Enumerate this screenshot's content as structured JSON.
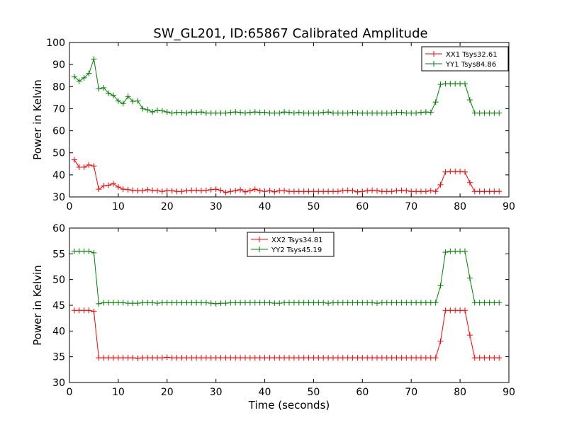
{
  "colors": {
    "xx": "#ff0000",
    "yy": "#008000",
    "axis": "#000000",
    "background": "#ffffff"
  },
  "figure": {
    "title": "SW_GL201, ID:65867 Calibrated Amplitude"
  },
  "chart_data": [
    {
      "type": "line",
      "title": "SW_GL201, ID:65867 Calibrated Amplitude",
      "xlabel": "",
      "ylabel": "Power in Kelvin",
      "xlim": [
        0,
        90
      ],
      "ylim": [
        30,
        100
      ],
      "xticks": [
        0,
        10,
        20,
        30,
        40,
        50,
        60,
        70,
        80,
        90
      ],
      "yticks": [
        30,
        40,
        50,
        60,
        70,
        80,
        90,
        100
      ],
      "grid": false,
      "legend_position": "top-right",
      "marker": "plus",
      "x": [
        1,
        2,
        3,
        4,
        5,
        6,
        7,
        8,
        9,
        10,
        11,
        12,
        13,
        14,
        15,
        16,
        17,
        18,
        19,
        20,
        21,
        22,
        23,
        24,
        25,
        26,
        27,
        28,
        29,
        30,
        31,
        32,
        33,
        34,
        35,
        36,
        37,
        38,
        39,
        40,
        41,
        42,
        43,
        44,
        45,
        46,
        47,
        48,
        49,
        50,
        51,
        52,
        53,
        54,
        55,
        56,
        57,
        58,
        59,
        60,
        61,
        62,
        63,
        64,
        65,
        66,
        67,
        68,
        69,
        70,
        71,
        72,
        73,
        74,
        75,
        76,
        77,
        78,
        79,
        80,
        81,
        82,
        83,
        84,
        85,
        86,
        87,
        88
      ],
      "series": [
        {
          "name": "XX1 Tsys32.61",
          "color": "#ff0000",
          "values": [
            46.8,
            43.5,
            43.5,
            44.5,
            44.0,
            33.5,
            35.0,
            35.3,
            36.0,
            34.5,
            33.5,
            33.3,
            33.0,
            32.8,
            32.8,
            33.3,
            33.0,
            32.8,
            32.5,
            32.8,
            32.8,
            32.5,
            32.5,
            32.8,
            33.0,
            33.0,
            32.8,
            33.0,
            33.3,
            33.5,
            33.0,
            32.0,
            32.5,
            32.8,
            33.3,
            32.3,
            32.8,
            33.5,
            32.8,
            32.5,
            32.8,
            32.3,
            32.8,
            32.8,
            32.5,
            32.5,
            32.5,
            32.5,
            32.5,
            32.5,
            32.5,
            32.5,
            32.5,
            32.5,
            32.5,
            32.8,
            33.0,
            32.8,
            32.3,
            32.5,
            32.8,
            33.0,
            32.8,
            32.5,
            32.5,
            32.5,
            32.8,
            33.0,
            32.8,
            32.5,
            32.5,
            32.5,
            32.5,
            32.8,
            32.5,
            35.5,
            41.3,
            41.5,
            41.5,
            41.5,
            41.3,
            36.5,
            32.5,
            32.5,
            32.5,
            32.5,
            32.5,
            32.5
          ]
        },
        {
          "name": "YY1 Tsys84.86",
          "color": "#008000",
          "values": [
            84.5,
            82.5,
            84.0,
            86.0,
            92.5,
            79.0,
            79.5,
            77.0,
            76.0,
            73.5,
            72.3,
            75.5,
            73.3,
            73.5,
            70.0,
            69.5,
            68.5,
            69.3,
            69.0,
            68.5,
            68.0,
            68.3,
            68.3,
            68.0,
            68.5,
            68.3,
            68.5,
            68.0,
            68.0,
            68.0,
            68.0,
            68.0,
            68.3,
            68.5,
            68.3,
            68.0,
            68.3,
            68.5,
            68.3,
            68.3,
            68.0,
            68.0,
            68.0,
            68.5,
            68.3,
            68.0,
            68.3,
            68.0,
            68.0,
            68.0,
            68.0,
            68.3,
            68.5,
            68.0,
            68.0,
            68.0,
            68.0,
            68.3,
            68.0,
            68.0,
            68.0,
            68.0,
            68.0,
            68.0,
            68.0,
            68.0,
            68.3,
            68.3,
            68.0,
            68.0,
            68.0,
            68.3,
            68.5,
            68.3,
            73.0,
            81.0,
            81.3,
            81.3,
            81.3,
            81.3,
            81.3,
            74.0,
            68.0,
            68.0,
            68.0,
            68.0,
            68.0,
            68.0
          ]
        }
      ]
    },
    {
      "type": "line",
      "title": "",
      "xlabel": "Time (seconds)",
      "ylabel": "Power in Kelvin",
      "xlim": [
        0,
        90
      ],
      "ylim": [
        30,
        60
      ],
      "xticks": [
        0,
        10,
        20,
        30,
        40,
        50,
        60,
        70,
        80,
        90
      ],
      "yticks": [
        30,
        35,
        40,
        45,
        50,
        55,
        60
      ],
      "grid": false,
      "legend_position": "top-center",
      "marker": "plus",
      "x": [
        1,
        2,
        3,
        4,
        5,
        6,
        7,
        8,
        9,
        10,
        11,
        12,
        13,
        14,
        15,
        16,
        17,
        18,
        19,
        20,
        21,
        22,
        23,
        24,
        25,
        26,
        27,
        28,
        29,
        30,
        31,
        32,
        33,
        34,
        35,
        36,
        37,
        38,
        39,
        40,
        41,
        42,
        43,
        44,
        45,
        46,
        47,
        48,
        49,
        50,
        51,
        52,
        53,
        54,
        55,
        56,
        57,
        58,
        59,
        60,
        61,
        62,
        63,
        64,
        65,
        66,
        67,
        68,
        69,
        70,
        71,
        72,
        73,
        74,
        75,
        76,
        77,
        78,
        79,
        80,
        81,
        82,
        83,
        84,
        85,
        86,
        87,
        88
      ],
      "series": [
        {
          "name": "XX2 Tsys34.81",
          "color": "#ff0000",
          "values": [
            44.0,
            44.0,
            44.0,
            44.0,
            43.8,
            34.8,
            34.8,
            34.8,
            34.8,
            34.8,
            34.8,
            34.8,
            34.8,
            34.7,
            34.8,
            34.8,
            34.8,
            34.8,
            34.8,
            34.9,
            34.8,
            34.8,
            34.8,
            34.8,
            34.8,
            34.8,
            34.8,
            34.8,
            34.8,
            34.8,
            34.8,
            34.8,
            34.8,
            34.8,
            34.8,
            34.8,
            34.8,
            34.8,
            34.8,
            34.8,
            34.8,
            34.8,
            34.8,
            34.8,
            34.8,
            34.8,
            34.8,
            34.8,
            34.8,
            34.8,
            34.8,
            34.8,
            34.8,
            34.8,
            34.8,
            34.8,
            34.8,
            34.8,
            34.8,
            34.8,
            34.8,
            34.8,
            34.8,
            34.8,
            34.8,
            34.8,
            34.8,
            34.8,
            34.8,
            34.8,
            34.8,
            34.8,
            34.8,
            34.8,
            34.8,
            38.0,
            44.0,
            44.0,
            44.0,
            44.0,
            44.0,
            39.2,
            34.8,
            34.8,
            34.8,
            34.8,
            34.8,
            34.8
          ]
        },
        {
          "name": "YY2 Tsys45.19",
          "color": "#008000",
          "values": [
            55.5,
            55.5,
            55.5,
            55.5,
            55.2,
            45.3,
            45.5,
            45.5,
            45.5,
            45.5,
            45.5,
            45.4,
            45.4,
            45.4,
            45.5,
            45.5,
            45.5,
            45.4,
            45.5,
            45.5,
            45.5,
            45.5,
            45.5,
            45.5,
            45.5,
            45.5,
            45.5,
            45.5,
            45.4,
            45.3,
            45.4,
            45.4,
            45.5,
            45.5,
            45.5,
            45.5,
            45.5,
            45.5,
            45.5,
            45.5,
            45.5,
            45.4,
            45.4,
            45.5,
            45.5,
            45.5,
            45.5,
            45.5,
            45.5,
            45.5,
            45.5,
            45.5,
            45.4,
            45.5,
            45.5,
            45.5,
            45.5,
            45.5,
            45.5,
            45.5,
            45.5,
            45.5,
            45.4,
            45.5,
            45.5,
            45.5,
            45.5,
            45.5,
            45.5,
            45.5,
            45.5,
            45.5,
            45.5,
            45.5,
            45.5,
            48.8,
            55.3,
            55.5,
            55.5,
            55.5,
            55.5,
            50.3,
            45.5,
            45.5,
            45.5,
            45.5,
            45.5,
            45.5
          ]
        }
      ]
    }
  ]
}
